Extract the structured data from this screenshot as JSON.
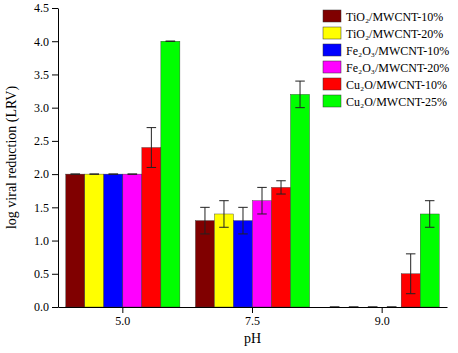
{
  "chart_data": {
    "type": "bar",
    "x_label": "pH",
    "y_label": "log viral reduction (LRV)",
    "categories": [
      "5.0",
      "7.5",
      "9.0"
    ],
    "series": [
      {
        "name": "TiO₂/MWCNT-10%",
        "color": "#800000",
        "values": [
          2.0,
          1.3,
          0
        ],
        "errors": [
          0,
          0.2,
          0
        ]
      },
      {
        "name": "TiO₂/MWCNT-20%",
        "color": "#ffff00",
        "values": [
          2.0,
          1.4,
          0
        ],
        "errors": [
          0,
          0.2,
          0
        ]
      },
      {
        "name": "Fe₂O₃/MWCNT-10%",
        "color": "#0000ff",
        "values": [
          2.0,
          1.3,
          0
        ],
        "errors": [
          0,
          0.2,
          0
        ]
      },
      {
        "name": "Fe₂O₃/MWCNT-20%",
        "color": "#ff00ff",
        "values": [
          2.0,
          1.6,
          0
        ],
        "errors": [
          0,
          0.2,
          0
        ]
      },
      {
        "name": "Cu₂O/MWCNT-10%",
        "color": "#ff0000",
        "values": [
          2.4,
          1.8,
          0.5
        ],
        "errors": [
          0.3,
          0.1,
          0.3
        ]
      },
      {
        "name": "Cu₂O/MWCNT-25%",
        "color": "#00ff00",
        "values": [
          4.0,
          3.2,
          1.4
        ],
        "errors": [
          0,
          0.2,
          0.2
        ]
      }
    ],
    "ylim": [
      0,
      4.5
    ],
    "yticks": [
      {
        "value": 0,
        "label": "0.0"
      },
      {
        "value": 0.5,
        "label": "0.5"
      },
      {
        "value": 1,
        "label": "1.0"
      },
      {
        "value": 1.5,
        "label": "1.5"
      },
      {
        "value": 2,
        "label": "2.0"
      },
      {
        "value": 2.5,
        "label": "2.5"
      },
      {
        "value": 3,
        "label": "3.0"
      },
      {
        "value": 3.5,
        "label": "3.5"
      },
      {
        "value": 4,
        "label": "4.0"
      },
      {
        "value": 4.5,
        "label": "4.5"
      }
    ],
    "legend": "upper right",
    "grid": false
  }
}
